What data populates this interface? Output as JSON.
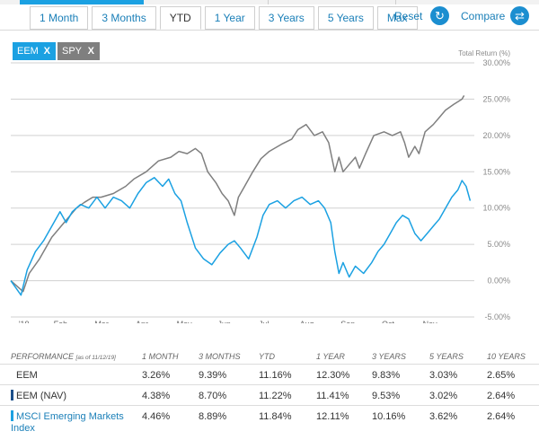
{
  "range_tabs": [
    "1 Month",
    "3 Months",
    "YTD",
    "1 Year",
    "3 Years",
    "5 Years",
    "Max"
  ],
  "active_tab": "YTD",
  "actions": {
    "reset": "Reset",
    "compare": "Compare"
  },
  "icons": {
    "reset": "refresh-icon",
    "compare": "swap-arrows-icon",
    "remove": "close-icon"
  },
  "tickers": [
    {
      "label": "EEM",
      "remove": "X",
      "color": "#1ba1e2"
    },
    {
      "label": "SPY",
      "remove": "X",
      "color": "#7f7f7f"
    }
  ],
  "chart_data": {
    "type": "line",
    "ylabel": "Total Return (%)",
    "ylim": [
      -5,
      30
    ],
    "yticks": [
      "30.00%",
      "25.00%",
      "20.00%",
      "15.00%",
      "10.00%",
      "5.00%",
      "0.00%",
      "-5.00%"
    ],
    "xticks": [
      "'19",
      "Feb",
      "Mar",
      "Apr",
      "May",
      "Jun",
      "Jul",
      "Aug",
      "Sep",
      "Oct",
      "Nov"
    ],
    "grid": true,
    "colors": {
      "EEM": "#1ba1e2",
      "SPY": "#7f7f7f"
    },
    "series": [
      {
        "name": "SPY",
        "points": [
          [
            0,
            0.0
          ],
          [
            0.3,
            -1.5
          ],
          [
            0.45,
            1.0
          ],
          [
            0.7,
            3.0
          ],
          [
            1.0,
            6.0
          ],
          [
            1.3,
            8.0
          ],
          [
            1.6,
            10.0
          ],
          [
            1.8,
            10.8
          ],
          [
            2.0,
            11.5
          ],
          [
            2.2,
            11.5
          ],
          [
            2.5,
            12.0
          ],
          [
            2.8,
            13.0
          ],
          [
            3.0,
            14.0
          ],
          [
            3.3,
            15.0
          ],
          [
            3.6,
            16.5
          ],
          [
            3.9,
            17.0
          ],
          [
            4.1,
            17.8
          ],
          [
            4.3,
            17.5
          ],
          [
            4.5,
            18.2
          ],
          [
            4.65,
            17.5
          ],
          [
            4.8,
            15.0
          ],
          [
            5.0,
            13.5
          ],
          [
            5.15,
            12.0
          ],
          [
            5.3,
            11.0
          ],
          [
            5.45,
            9.0
          ],
          [
            5.55,
            11.5
          ],
          [
            5.7,
            13.0
          ],
          [
            5.9,
            15.0
          ],
          [
            6.1,
            16.8
          ],
          [
            6.3,
            17.8
          ],
          [
            6.6,
            18.8
          ],
          [
            6.85,
            19.5
          ],
          [
            7.0,
            20.8
          ],
          [
            7.2,
            21.5
          ],
          [
            7.4,
            20.0
          ],
          [
            7.6,
            20.5
          ],
          [
            7.75,
            19.0
          ],
          [
            7.9,
            15.0
          ],
          [
            8.0,
            17.0
          ],
          [
            8.1,
            15.0
          ],
          [
            8.25,
            16.0
          ],
          [
            8.4,
            17.0
          ],
          [
            8.5,
            15.5
          ],
          [
            8.65,
            17.5
          ],
          [
            8.85,
            20.0
          ],
          [
            9.1,
            20.5
          ],
          [
            9.3,
            20.0
          ],
          [
            9.5,
            20.5
          ],
          [
            9.6,
            19.0
          ],
          [
            9.7,
            17.0
          ],
          [
            9.85,
            18.5
          ],
          [
            9.95,
            17.5
          ],
          [
            10.1,
            20.5
          ],
          [
            10.3,
            21.5
          ],
          [
            10.45,
            22.5
          ],
          [
            10.6,
            23.5
          ],
          [
            10.8,
            24.3
          ],
          [
            11.0,
            25.0
          ],
          [
            11.05,
            25.5
          ]
        ]
      },
      {
        "name": "EEM",
        "points": [
          [
            0,
            0.0
          ],
          [
            0.25,
            -2.0
          ],
          [
            0.4,
            1.5
          ],
          [
            0.6,
            4.0
          ],
          [
            0.8,
            5.5
          ],
          [
            1.0,
            7.5
          ],
          [
            1.2,
            9.5
          ],
          [
            1.35,
            8.0
          ],
          [
            1.5,
            9.5
          ],
          [
            1.7,
            10.5
          ],
          [
            1.9,
            10.0
          ],
          [
            2.1,
            11.5
          ],
          [
            2.3,
            10.0
          ],
          [
            2.5,
            11.5
          ],
          [
            2.7,
            11.0
          ],
          [
            2.9,
            10.0
          ],
          [
            3.1,
            12.0
          ],
          [
            3.3,
            13.5
          ],
          [
            3.5,
            14.2
          ],
          [
            3.7,
            13.0
          ],
          [
            3.85,
            14.0
          ],
          [
            4.0,
            12.0
          ],
          [
            4.15,
            11.0
          ],
          [
            4.3,
            8.0
          ],
          [
            4.5,
            4.5
          ],
          [
            4.7,
            3.0
          ],
          [
            4.9,
            2.2
          ],
          [
            5.1,
            3.8
          ],
          [
            5.3,
            5.0
          ],
          [
            5.45,
            5.5
          ],
          [
            5.6,
            4.5
          ],
          [
            5.8,
            3.0
          ],
          [
            6.0,
            6.0
          ],
          [
            6.15,
            9.0
          ],
          [
            6.3,
            10.5
          ],
          [
            6.5,
            11.0
          ],
          [
            6.7,
            10.0
          ],
          [
            6.9,
            11.0
          ],
          [
            7.1,
            11.5
          ],
          [
            7.3,
            10.5
          ],
          [
            7.5,
            11.0
          ],
          [
            7.65,
            10.0
          ],
          [
            7.8,
            8.0
          ],
          [
            7.9,
            4.0
          ],
          [
            8.0,
            1.0
          ],
          [
            8.1,
            2.5
          ],
          [
            8.25,
            0.5
          ],
          [
            8.4,
            2.0
          ],
          [
            8.6,
            1.0
          ],
          [
            8.8,
            2.5
          ],
          [
            8.95,
            4.0
          ],
          [
            9.1,
            5.0
          ],
          [
            9.25,
            6.5
          ],
          [
            9.4,
            8.0
          ],
          [
            9.55,
            9.0
          ],
          [
            9.7,
            8.5
          ],
          [
            9.85,
            6.5
          ],
          [
            10.0,
            5.5
          ],
          [
            10.15,
            6.5
          ],
          [
            10.3,
            7.5
          ],
          [
            10.45,
            8.5
          ],
          [
            10.6,
            10.0
          ],
          [
            10.75,
            11.5
          ],
          [
            10.9,
            12.5
          ],
          [
            11.0,
            13.8
          ],
          [
            11.1,
            13.0
          ],
          [
            11.2,
            11.0
          ]
        ]
      }
    ]
  },
  "performance": {
    "header_label": "PERFORMANCE",
    "as_of": "[as of 11/12/19]",
    "columns": [
      "1 MONTH",
      "3 MONTHS",
      "YTD",
      "1 YEAR",
      "3 YEARS",
      "5 YEARS",
      "10 YEARS"
    ],
    "rows": [
      {
        "name": "EEM",
        "values": [
          "3.26%",
          "9.39%",
          "11.16%",
          "12.30%",
          "9.83%",
          "3.03%",
          "2.65%"
        ]
      },
      {
        "name": "EEM (NAV)",
        "values": [
          "4.38%",
          "8.70%",
          "11.22%",
          "11.41%",
          "9.53%",
          "3.02%",
          "2.64%"
        ]
      },
      {
        "name_line1": "MSCI Emerging Markets",
        "name_line2": "Index",
        "values": [
          "4.46%",
          "8.89%",
          "11.84%",
          "12.11%",
          "10.16%",
          "3.62%",
          "2.64%"
        ]
      }
    ]
  }
}
